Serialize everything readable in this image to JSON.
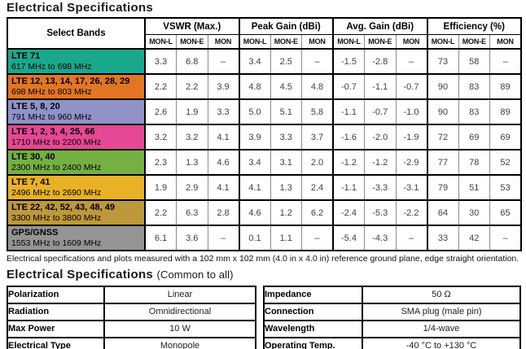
{
  "title": "Electrical Specifications",
  "main_table": {
    "select_bands_header": "Select Bands",
    "groups": [
      {
        "key": "vswr",
        "label": "VSWR (Max.)"
      },
      {
        "key": "peak_gain",
        "label": "Peak Gain (dBi)"
      },
      {
        "key": "avg_gain",
        "label": "Avg. Gain (dBi)"
      },
      {
        "key": "efficiency",
        "label": "Efficiency (%)"
      }
    ],
    "subcolumns": [
      "MON-L",
      "MON-E",
      "MON"
    ],
    "rows": [
      {
        "band": "LTE 71",
        "range": "617 MHz to 698 MHz",
        "color": "#1AA88C",
        "vswr": [
          "3.3",
          "6.8",
          "–"
        ],
        "peak_gain": [
          "3.4",
          "2.5",
          "–"
        ],
        "avg_gain": [
          "-1.5",
          "-2.8",
          "–"
        ],
        "efficiency": [
          "73",
          "58",
          "–"
        ]
      },
      {
        "band": "LTE 12, 13, 14, 17, 26, 28, 29",
        "range": "698 MHz to 803 MHz",
        "color": "#E27622",
        "vswr": [
          "2.2",
          "2.2",
          "3.9"
        ],
        "peak_gain": [
          "4.8",
          "4.5",
          "4.8"
        ],
        "avg_gain": [
          "-0.7",
          "-1.1",
          "-0.7"
        ],
        "efficiency": [
          "90",
          "83",
          "89"
        ]
      },
      {
        "band": "LTE 5, 8, 20",
        "range": "791 MHz to 960 MHz",
        "color": "#9092C8",
        "vswr": [
          "2.6",
          "1.9",
          "3.3"
        ],
        "peak_gain": [
          "5.0",
          "5.1",
          "5.8"
        ],
        "avg_gain": [
          "-1.1",
          "-0.7",
          "-1.0"
        ],
        "efficiency": [
          "90",
          "83",
          "89"
        ]
      },
      {
        "band": "LTE 1, 2, 3, 4, 25, 66",
        "range": "1710 MHz to 2200 MHz",
        "color": "#E54894",
        "vswr": [
          "3.2",
          "3.2",
          "4.1"
        ],
        "peak_gain": [
          "3.9",
          "3.3",
          "3.7"
        ],
        "avg_gain": [
          "-1.6",
          "-2.0",
          "-1.9"
        ],
        "efficiency": [
          "72",
          "69",
          "69"
        ]
      },
      {
        "band": "LTE 30, 40",
        "range": "2300 MHz to 2400 MHz",
        "color": "#74B042",
        "vswr": [
          "2.3",
          "1.3",
          "4.6"
        ],
        "peak_gain": [
          "3.4",
          "3.1",
          "2.0"
        ],
        "avg_gain": [
          "-1.2",
          "-1.2",
          "-2.9"
        ],
        "efficiency": [
          "77",
          "78",
          "52"
        ]
      },
      {
        "band": "LTE 7, 41",
        "range": "2496 MHz to 2690 MHz",
        "color": "#E8B224",
        "vswr": [
          "1.9",
          "2.9",
          "4.1"
        ],
        "peak_gain": [
          "4.1",
          "1.3",
          "2.4"
        ],
        "avg_gain": [
          "-1.1",
          "-3.3",
          "-3.1"
        ],
        "efficiency": [
          "79",
          "51",
          "53"
        ]
      },
      {
        "band": "LTE 22, 42, 52, 43, 48, 49",
        "range": "3300 MHz to 3800 MHz",
        "color": "#BE983C",
        "vswr": [
          "2.2",
          "6.3",
          "2.8"
        ],
        "peak_gain": [
          "4.6",
          "1.2",
          "6.2"
        ],
        "avg_gain": [
          "-2.4",
          "-5.3",
          "-2.2"
        ],
        "efficiency": [
          "64",
          "30",
          "65"
        ]
      },
      {
        "band": "GPS/GNSS",
        "range": "1553 MHz to 1609 MHz",
        "color": "#949494",
        "vswr": [
          "6.1",
          "3.6",
          "–"
        ],
        "peak_gain": [
          "0.1",
          "1.1",
          "–"
        ],
        "avg_gain": [
          "-5.4",
          "-4.3",
          "–"
        ],
        "efficiency": [
          "33",
          "42",
          "–"
        ]
      }
    ]
  },
  "footnote": "Electrical specifications and plots measured with a 102 mm x 102 mm (4.0 in x 4.0 in) reference ground plane, edge straight orientation.",
  "common_section": {
    "title": "Electrical Specifications",
    "subtitle": "(Common to all)",
    "left_table": [
      {
        "label": "Polarization",
        "value": "Linear"
      },
      {
        "label": "Radiation",
        "value": "Omnidirectional"
      },
      {
        "label": "Max Power",
        "value": "10 W"
      },
      {
        "label": "Electrical Type",
        "value": "Monopole"
      }
    ],
    "right_table": [
      {
        "label": "Impedance",
        "value": "50 Ω"
      },
      {
        "label": "Connection",
        "value": "SMA plug (male pin)"
      },
      {
        "label": "Wavelength",
        "value": "1/4-wave"
      },
      {
        "label": "Operating Temp.",
        "value": "-40 °C to +130 °C"
      }
    ]
  }
}
